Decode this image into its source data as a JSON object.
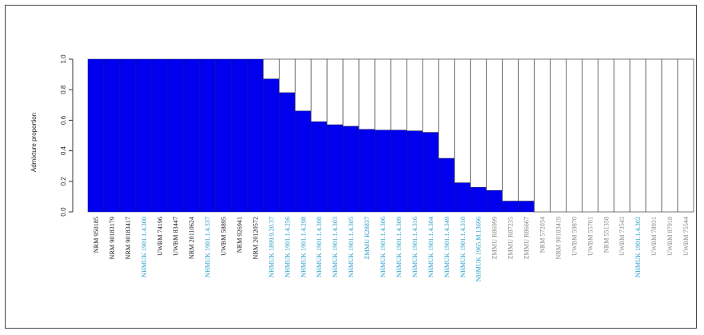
{
  "chart_data": {
    "type": "bar",
    "subtype": "stacked-admixture",
    "ylabel": "Admixture proportion",
    "ylim": [
      0,
      1
    ],
    "yticks": [
      "0.0",
      "0.2",
      "0.4",
      "0.6",
      "0.8",
      "1.0"
    ],
    "grid": false,
    "legend": "none",
    "categories": [
      "NRM 950185",
      "NRM 90183179",
      "NRM 90183417",
      "NHMUK 1901.1.4.300",
      "UWBM 74196",
      "UWBM 83447",
      "NRM 20110624",
      "NHMUK 1901.1.4.337",
      "UWBM 58895",
      "NRM 926941",
      "NRM 20120572",
      "NHMUK 1899.9.20.37",
      "NHMUK 1901.1.4.256",
      "NHMUK 1901.1.4.298",
      "NHMUK 1901.1.4.308",
      "NHMUK 1901.1.4.303",
      "NHMUK 1901.1.4.305",
      "ZMMU R28837",
      "NHMUK 1901.1.4.306",
      "NHMUK 1901.1.4.309",
      "NHMUK 1901.1.4.316",
      "NHMUK 1901.1.4.304",
      "NHMUK 1901.1.4.349",
      "NHMUK 1901.1.4.310",
      "NHMUK 1965.M.13696",
      "ZMMU R86999",
      "ZMMU R87235",
      "ZMMU R86667",
      "NRM 572034",
      "NRM 90183419",
      "UWBM 59870",
      "UWBM 55701",
      "NRM 551358",
      "UWBM 73543",
      "NHMUK 1901.1.4.302",
      "UWBM 78931",
      "UWBM 87918",
      "UWBM 75544"
    ],
    "label_colors": [
      "#222222",
      "#222222",
      "#222222",
      "#2a9fc9",
      "#222222",
      "#222222",
      "#222222",
      "#2a9fc9",
      "#222222",
      "#222222",
      "#222222",
      "#2a9fc9",
      "#2a9fc9",
      "#2a9fc9",
      "#2a9fc9",
      "#2a9fc9",
      "#2a9fc9",
      "#2a9fc9",
      "#2a9fc9",
      "#2a9fc9",
      "#2a9fc9",
      "#2a9fc9",
      "#2a9fc9",
      "#2a9fc9",
      "#2a9fc9",
      "#888888",
      "#888888",
      "#888888",
      "#888888",
      "#888888",
      "#888888",
      "#888888",
      "#888888",
      "#888888",
      "#2a9fc9",
      "#888888",
      "#888888",
      "#888888"
    ],
    "series": [
      {
        "color": "#0000ee",
        "values": [
          1,
          1,
          1,
          1,
          1,
          1,
          1,
          1,
          1,
          1,
          1,
          0.87,
          0.78,
          0.66,
          0.59,
          0.57,
          0.56,
          0.54,
          0.535,
          0.535,
          0.53,
          0.52,
          0.35,
          0.19,
          0.16,
          0.14,
          0.07,
          0.07,
          0,
          0,
          0,
          0,
          0,
          0,
          0,
          0,
          0,
          0
        ]
      },
      {
        "color": "#ffffff",
        "values": [
          0,
          0,
          0,
          0,
          0,
          0,
          0,
          0,
          0,
          0,
          0,
          0.13,
          0.22,
          0.34,
          0.41,
          0.43,
          0.44,
          0.46,
          0.465,
          0.465,
          0.47,
          0.48,
          0.65,
          0.81,
          0.84,
          0.86,
          0.93,
          0.93,
          1,
          1,
          1,
          1,
          1,
          1,
          1,
          1,
          1,
          1
        ]
      }
    ],
    "bar_outline_color": "#555555"
  }
}
